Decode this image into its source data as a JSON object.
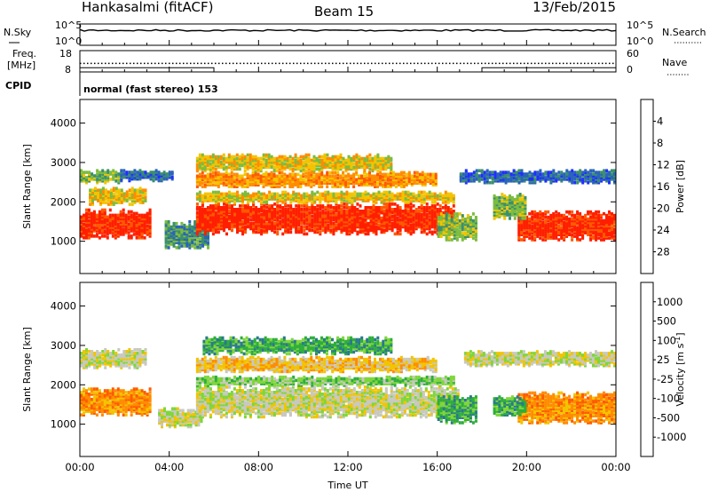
{
  "header": {
    "station": "Hankasalmi (fitACF)",
    "beam": "Beam 15",
    "date": "13/Feb/2015"
  },
  "top_panel": {
    "nsky_label": "N.Sky",
    "nsky_ticks": [
      "10^5",
      "10^0"
    ],
    "nsearch_label": "N.Search",
    "nsearch_ticks": [
      "10^5",
      "10^0"
    ],
    "freq_label": "Freq.",
    "freq_unit": "[MHz]",
    "freq_ticks": [
      "18",
      "8"
    ],
    "nave_label": "Nave",
    "nave_ticks": [
      "60",
      "0"
    ],
    "cpid_label": "CPID",
    "mode_text": "normal (fast stereo) 153",
    "nsky_level": 0.7,
    "freq_level_mhz": 12,
    "nave_segments": [
      {
        "x0": 0,
        "x1": 6,
        "nave": 12
      },
      {
        "x0": 6,
        "x1": 18,
        "nave": 0
      },
      {
        "x0": 18,
        "x1": 24,
        "nave": 12
      }
    ]
  },
  "chart_data": [
    {
      "type": "heatmap",
      "name": "power",
      "ylabel": "Slant Range [km]",
      "xlabel": "",
      "xlim": [
        0,
        24
      ],
      "ylim": [
        180,
        4600
      ],
      "x_ticks": [
        "00:00",
        "04:00",
        "08:00",
        "12:00",
        "16:00",
        "20:00",
        "00:00"
      ],
      "y_ticks": [
        1000,
        2000,
        3000,
        4000
      ],
      "colorbar": {
        "label": "Power [dB]",
        "ticks": [
          "4",
          "8",
          "12",
          "16",
          "20",
          "24",
          "28"
        ],
        "colors": [
          "#1f2fff",
          "#2a64b8",
          "#3c8f6c",
          "#7cbc3e",
          "#f2c400",
          "#ff8c00",
          "#ff5a00",
          "#ff1e00"
        ]
      },
      "bands": [
        {
          "t0": 0.0,
          "t1": 3.2,
          "r0": 1050,
          "r1": 1800,
          "level": 7
        },
        {
          "t0": 0.4,
          "t1": 3.0,
          "r0": 1900,
          "r1": 2350,
          "level": 4
        },
        {
          "t0": 0.0,
          "t1": 1.8,
          "r0": 2450,
          "r1": 2800,
          "level": 3
        },
        {
          "t0": 1.8,
          "t1": 4.2,
          "r0": 2500,
          "r1": 2800,
          "level": 1
        },
        {
          "t0": 3.8,
          "t1": 5.8,
          "r0": 800,
          "r1": 1500,
          "level": 2
        },
        {
          "t0": 5.2,
          "t1": 16.8,
          "r0": 1150,
          "r1": 1950,
          "level": 7
        },
        {
          "t0": 5.2,
          "t1": 16.8,
          "r0": 1950,
          "r1": 2250,
          "level": 4
        },
        {
          "t0": 5.2,
          "t1": 16.0,
          "r0": 2350,
          "r1": 2750,
          "level": 5
        },
        {
          "t0": 5.2,
          "t1": 14.0,
          "r0": 2750,
          "r1": 3200,
          "level": 4
        },
        {
          "t0": 16.0,
          "t1": 17.8,
          "r0": 1000,
          "r1": 1700,
          "level": 3
        },
        {
          "t0": 17.0,
          "t1": 24.0,
          "r0": 2450,
          "r1": 2800,
          "level": 1
        },
        {
          "t0": 19.6,
          "t1": 24.0,
          "r0": 1000,
          "r1": 1750,
          "level": 7
        },
        {
          "t0": 18.5,
          "t1": 20.0,
          "r0": 1500,
          "r1": 2200,
          "level": 3
        }
      ]
    },
    {
      "type": "heatmap",
      "name": "velocity",
      "ylabel": "Slant Range [km]",
      "xlabel": "Time UT",
      "xlim": [
        0,
        24
      ],
      "ylim": [
        180,
        4600
      ],
      "x_ticks": [
        "00:00",
        "04:00",
        "08:00",
        "12:00",
        "16:00",
        "20:00",
        "00:00"
      ],
      "y_ticks": [
        1000,
        2000,
        3000,
        4000
      ],
      "colorbar": {
        "label": "Velocity [m s",
        "label_exponent": "-1",
        "label_close": "]",
        "ticks": [
          "1000",
          "500",
          "100",
          "25",
          "-25",
          "-100",
          "-500",
          "-1000"
        ],
        "colors": [
          "#1f2fff",
          "#2a7a8a",
          "#2eae3c",
          "#7fd63a",
          "#c8c8c0",
          "#f2c400",
          "#ff8c00",
          "#ff5a00",
          "#ff1e00"
        ]
      },
      "bands": [
        {
          "t0": 0.0,
          "t1": 3.2,
          "r0": 1200,
          "r1": 1900,
          "level": 6
        },
        {
          "t0": 0.0,
          "t1": 3.0,
          "r0": 2400,
          "r1": 2900,
          "level": 4
        },
        {
          "t0": 3.5,
          "t1": 5.5,
          "r0": 900,
          "r1": 1400,
          "level": 4
        },
        {
          "t0": 5.2,
          "t1": 17.0,
          "r0": 1150,
          "r1": 1950,
          "level": 4
        },
        {
          "t0": 5.2,
          "t1": 16.8,
          "r0": 1950,
          "r1": 2200,
          "level": 3
        },
        {
          "t0": 5.2,
          "t1": 16.0,
          "r0": 2300,
          "r1": 2700,
          "level": 5
        },
        {
          "t0": 5.5,
          "t1": 14.0,
          "r0": 2750,
          "r1": 3200,
          "level": 2
        },
        {
          "t0": 16.0,
          "t1": 17.8,
          "r0": 1000,
          "r1": 1700,
          "level": 2
        },
        {
          "t0": 17.2,
          "t1": 24.0,
          "r0": 2450,
          "r1": 2850,
          "level": 4
        },
        {
          "t0": 19.6,
          "t1": 24.0,
          "r0": 1000,
          "r1": 1800,
          "level": 6
        },
        {
          "t0": 18.5,
          "t1": 20.0,
          "r0": 1200,
          "r1": 1700,
          "level": 2
        }
      ]
    }
  ]
}
